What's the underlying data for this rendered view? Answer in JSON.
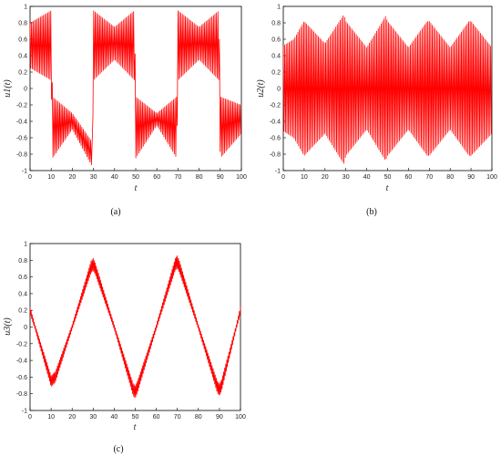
{
  "chart_data": [
    {
      "type": "line",
      "panel_caption": "(a)",
      "xlabel": "t",
      "ylabel": "u1(t)",
      "xlim": [
        0,
        100
      ],
      "ylim": [
        -1,
        1
      ],
      "xticks": [
        "0",
        "10",
        "20",
        "30",
        "40",
        "50",
        "60",
        "70",
        "80",
        "90",
        "100"
      ],
      "yticks": [
        "1",
        "0.8",
        "0.6",
        "0.4",
        "0.2",
        "0",
        "-0.2",
        "-0.4",
        "-0.6",
        "-0.8",
        "-1"
      ],
      "grid": false,
      "color": "#ff0000",
      "series": [
        {
          "description_of_signal": "dense oscillation, upper/lower envelopes switching every ~20 t",
          "envelope_t": [
            0,
            10,
            10.6,
            20,
            29.4,
            30,
            40,
            49.4,
            50,
            60,
            69.4,
            70,
            80,
            89.4,
            90,
            100
          ],
          "envelope_upper": [
            0.8,
            0.95,
            -0.1,
            -0.3,
            -0.65,
            0.95,
            0.75,
            0.95,
            -0.1,
            -0.3,
            -0.1,
            0.95,
            0.75,
            0.95,
            -0.1,
            -0.2
          ],
          "envelope_lower": [
            0.25,
            0.1,
            -0.85,
            -0.5,
            -0.95,
            0.1,
            0.35,
            0.1,
            -0.85,
            -0.45,
            -0.85,
            0.1,
            0.35,
            0.1,
            -0.85,
            -0.55
          ]
        }
      ]
    },
    {
      "type": "line",
      "panel_caption": "(b)",
      "xlabel": "t",
      "ylabel": "u2(t)",
      "xlim": [
        0,
        100
      ],
      "ylim": [
        -1,
        1
      ],
      "xticks": [
        "0",
        "10",
        "20",
        "30",
        "40",
        "50",
        "60",
        "70",
        "80",
        "90",
        "100"
      ],
      "yticks": [
        "1",
        "0.8",
        "0.6",
        "0.4",
        "0.2",
        "0",
        "-0.2",
        "-0.4",
        "-0.6",
        "-0.8",
        "-1"
      ],
      "grid": false,
      "color": "#ff0000",
      "series": [
        {
          "description_of_signal": "dense oscillation symmetric about 0, envelope ±0.5–0.9",
          "envelope_t": [
            0,
            5,
            10,
            20,
            29,
            30,
            40,
            49,
            50,
            60,
            69,
            70,
            80,
            89,
            90,
            100
          ],
          "envelope_upper": [
            0.52,
            0.6,
            0.82,
            0.55,
            0.9,
            0.82,
            0.5,
            0.88,
            0.82,
            0.5,
            0.82,
            0.82,
            0.5,
            0.82,
            0.82,
            0.5
          ],
          "envelope_lower": [
            -0.52,
            -0.6,
            -0.82,
            -0.55,
            -0.92,
            -0.82,
            -0.5,
            -0.88,
            -0.82,
            -0.5,
            -0.82,
            -0.82,
            -0.5,
            -0.82,
            -0.82,
            -0.55
          ]
        }
      ]
    },
    {
      "type": "line",
      "panel_caption": "(c)",
      "xlabel": "t",
      "ylabel": "u3(t)",
      "xlim": [
        0,
        100
      ],
      "ylim": [
        -1,
        1
      ],
      "xticks": [
        "0",
        "10",
        "20",
        "30",
        "40",
        "50",
        "60",
        "70",
        "80",
        "90",
        "100"
      ],
      "yticks": [
        "1",
        "0.8",
        "0.6",
        "0.4",
        "0.2",
        "0",
        "-0.2",
        "-0.4",
        "-0.6",
        "-0.8",
        "-1"
      ],
      "grid": false,
      "color": "#ff0000",
      "series": [
        {
          "description_of_signal": "triangle-like slow wave with fast ripple",
          "t": [
            0,
            10,
            12,
            20,
            29,
            30,
            31,
            40,
            49,
            50,
            51,
            60,
            69,
            70,
            71,
            80,
            89,
            90,
            91,
            100
          ],
          "center": [
            0.2,
            -0.65,
            -0.6,
            0.0,
            0.72,
            0.75,
            0.7,
            0.0,
            -0.75,
            -0.78,
            -0.72,
            0.0,
            0.75,
            0.78,
            0.72,
            0.0,
            -0.72,
            -0.75,
            -0.7,
            0.2
          ]
        }
      ]
    }
  ]
}
